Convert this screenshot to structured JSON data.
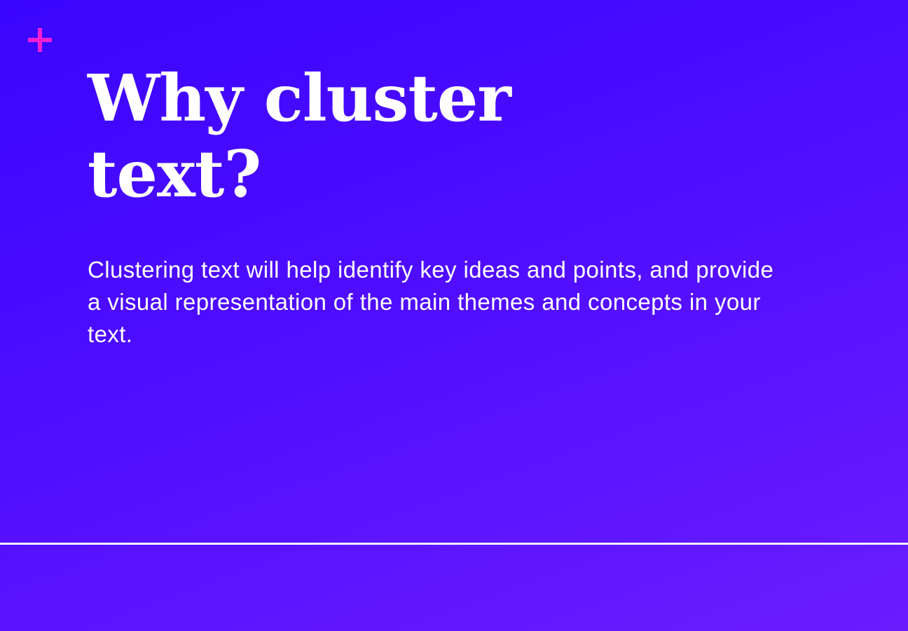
{
  "slide": {
    "icon": "plus-icon",
    "accent_color": "#ff1fd0",
    "background_colors": [
      "#3a05ff",
      "#6a1cff"
    ],
    "title_lines": [
      "Why cluster",
      "text?"
    ],
    "body": "Clustering text will help identify key ideas and points, and provide a visual representation of the main themes and concepts in your text."
  }
}
